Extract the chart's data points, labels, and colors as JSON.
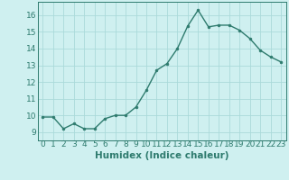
{
  "xlabel": "Humidex (Indice chaleur)",
  "x": [
    0,
    1,
    2,
    3,
    4,
    5,
    6,
    7,
    8,
    9,
    10,
    11,
    12,
    13,
    14,
    15,
    16,
    17,
    18,
    19,
    20,
    21,
    22,
    23
  ],
  "y": [
    9.9,
    9.9,
    9.2,
    9.5,
    9.2,
    9.2,
    9.8,
    10.0,
    10.0,
    10.5,
    11.5,
    12.7,
    13.1,
    14.0,
    15.35,
    16.3,
    15.3,
    15.4,
    15.4,
    15.1,
    14.6,
    13.9,
    13.5,
    13.2
  ],
  "line_color": "#2e7b6e",
  "marker_size": 2.0,
  "bg_color": "#cff0f0",
  "grid_color": "#aadada",
  "ylim": [
    8.5,
    16.8
  ],
  "xlim": [
    -0.5,
    23.5
  ],
  "yticks": [
    9,
    10,
    11,
    12,
    13,
    14,
    15,
    16
  ],
  "xticks": [
    0,
    1,
    2,
    3,
    4,
    5,
    6,
    7,
    8,
    9,
    10,
    11,
    12,
    13,
    14,
    15,
    16,
    17,
    18,
    19,
    20,
    21,
    22,
    23
  ],
  "tick_fontsize": 6.5,
  "xlabel_fontsize": 7.5,
  "line_width": 1.0
}
